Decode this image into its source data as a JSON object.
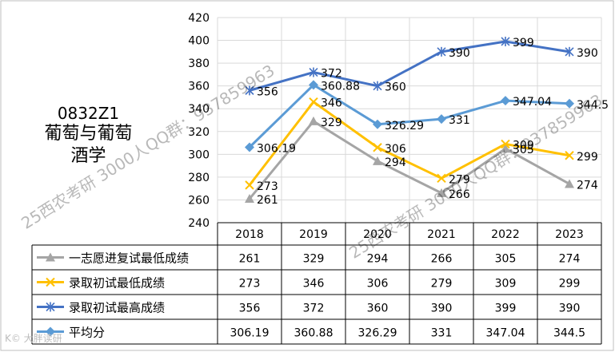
{
  "title": {
    "code": "0832Z1",
    "name_line1": "葡萄与葡萄",
    "name_line2": "酒学"
  },
  "watermark": {
    "text1": "25西农考研 3000人QQ群：937859963",
    "text2": "25西农考研 3000人QQ群：937859963"
  },
  "corner_badge": "K© 大胖读研",
  "colors": {
    "grey": "#a5a5a5",
    "gold": "#ffc000",
    "navy": "#4472c4",
    "sky": "#5b9bd5",
    "grid": "#d9d9d9"
  },
  "chart_data": {
    "type": "line",
    "categories": [
      "2018",
      "2019",
      "2020",
      "2021",
      "2022",
      "2023"
    ],
    "ylim": [
      240,
      420
    ],
    "yticks": [
      "240",
      "260",
      "280",
      "300",
      "320",
      "340",
      "360",
      "380",
      "400",
      "420"
    ],
    "grid": true,
    "legend": "data-table",
    "series": [
      {
        "name": "一志愿进复试最低成绩",
        "marker": "triangle",
        "color": "#a5a5a5",
        "values": [
          261,
          329,
          294,
          266,
          305,
          274
        ],
        "labels": [
          "261",
          "329",
          "294",
          "266",
          "305",
          "274"
        ]
      },
      {
        "name": "录取初试最低成绩",
        "marker": "x",
        "color": "#ffc000",
        "values": [
          273,
          346,
          306,
          279,
          309,
          299
        ],
        "labels": [
          "273",
          "346",
          "306",
          "279",
          "309",
          "299"
        ]
      },
      {
        "name": "录取初试最高成绩",
        "marker": "star",
        "color": "#4472c4",
        "values": [
          356,
          372,
          360,
          390,
          399,
          390
        ],
        "labels": [
          "356",
          "372",
          "360",
          "390",
          "399",
          "390"
        ]
      },
      {
        "name": "平均分",
        "marker": "diamond",
        "color": "#5b9bd5",
        "values": [
          306.19,
          360.88,
          326.29,
          331,
          347.04,
          344.5
        ],
        "labels": [
          "306.19",
          "360.88",
          "326.29",
          "331",
          "347.04",
          "344.5"
        ]
      }
    ]
  }
}
